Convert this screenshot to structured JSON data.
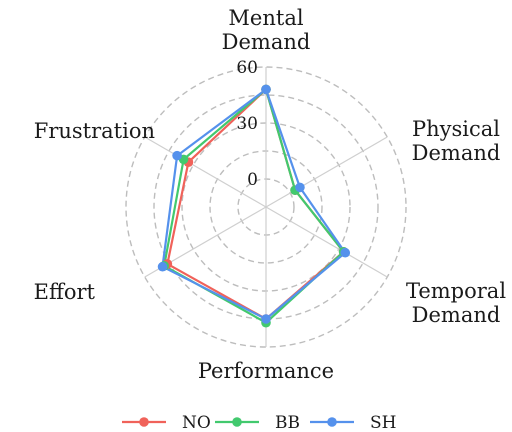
{
  "chart_data": {
    "type": "radar",
    "axes": [
      "Mental\nDemand",
      "Physical\nDemand",
      "Temporal\nDemand",
      "Performance",
      "Effort",
      "Frustration"
    ],
    "radial_range": [
      -15,
      60
    ],
    "radial_ticks": [
      0,
      30,
      60
    ],
    "grid": true,
    "legend_position": "bottom",
    "series": [
      {
        "name": "NO",
        "color": "#f0625a",
        "values": [
          48,
          3,
          33,
          45,
          46,
          33
        ]
      },
      {
        "name": "BB",
        "color": "#42c96e",
        "values": [
          48,
          3,
          33,
          47,
          48,
          36
        ]
      },
      {
        "name": "SH",
        "color": "#5591ec",
        "values": [
          48,
          6,
          34,
          45,
          49,
          40
        ]
      }
    ]
  }
}
